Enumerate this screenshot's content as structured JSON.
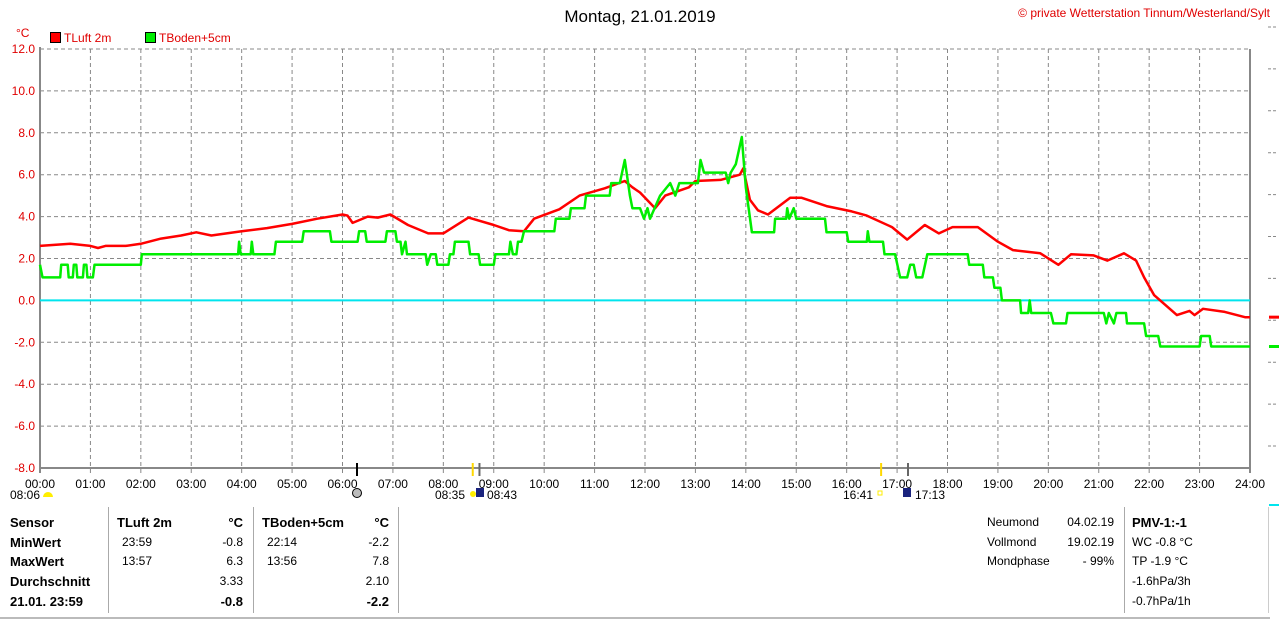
{
  "header": {
    "title": "Montag, 21.01.2019",
    "copyright": "© private Wetterstation Tinnum/Westerland/Sylt"
  },
  "markers": {
    "left_time": "08:06",
    "sunrise": "08:35",
    "sunrise2": "08:43",
    "sunset": "16:41",
    "sunset2": "17:13"
  },
  "table": {
    "col_sensor": "Sensor",
    "row_labels": [
      "MinWert",
      "MaxWert",
      "Durchschnitt",
      "21.01. 23:59"
    ],
    "sensors": [
      {
        "name": "TLuft 2m",
        "unit": "°C",
        "min_time": "23:59",
        "min": "-0.8",
        "max_time": "13:57",
        "max": "6.3",
        "avg": "3.33",
        "current": "-0.8"
      },
      {
        "name": "TBoden+5cm",
        "unit": "°C",
        "min_time": "22:14",
        "min": "-2.2",
        "max_time": "13:56",
        "max": "7.8",
        "avg": "2.10",
        "current": "-2.2"
      }
    ]
  },
  "moon": {
    "rows": [
      {
        "label": "Neumond",
        "value": "04.02.19"
      },
      {
        "label": "Vollmond",
        "value": "19.02.19"
      },
      {
        "label": "Mondphase",
        "value": "- 99%"
      }
    ]
  },
  "extra": {
    "title": "PMV-1:-1",
    "lines": [
      "WC -0.8 °C",
      "TP -1.9 °C",
      "-1.6hPa/3h",
      "-0.7hPa/1h"
    ]
  },
  "chart_data": {
    "type": "line",
    "title": "Montag, 21.01.2019",
    "ylabel": "°C",
    "xlabel": "",
    "ylim": [
      -8,
      12
    ],
    "xlim": [
      0,
      24
    ],
    "grid": true,
    "legend_position": "top-left",
    "y_ticks": [
      "-8.0",
      "-6.0",
      "-4.0",
      "-2.0",
      "0.0",
      "2.0",
      "4.0",
      "6.0",
      "8.0",
      "10.0",
      "12.0"
    ],
    "x_ticks": [
      "00:00",
      "01:00",
      "02:00",
      "03:00",
      "04:00",
      "05:00",
      "06:00",
      "07:00",
      "08:00",
      "09:00",
      "10:00",
      "11:00",
      "12:00",
      "13:00",
      "14:00",
      "15:00",
      "16:00",
      "17:00",
      "18:00",
      "19:00",
      "20:00",
      "21:00",
      "22:00",
      "23:00",
      "24:00"
    ],
    "reference_line": {
      "value": 0,
      "color": "#00e5ee"
    },
    "series": [
      {
        "name": "TLuft 2m",
        "color": "#ff0000",
        "points": [
          [
            0,
            2.6
          ],
          [
            0.6,
            2.7
          ],
          [
            1.0,
            2.6
          ],
          [
            1.15,
            2.5
          ],
          [
            1.3,
            2.6
          ],
          [
            1.7,
            2.6
          ],
          [
            2.0,
            2.7
          ],
          [
            2.4,
            2.95
          ],
          [
            2.8,
            3.1
          ],
          [
            3.1,
            3.25
          ],
          [
            3.4,
            3.1
          ],
          [
            4.0,
            3.3
          ],
          [
            4.5,
            3.45
          ],
          [
            5.0,
            3.65
          ],
          [
            5.5,
            3.9
          ],
          [
            6.0,
            4.1
          ],
          [
            6.1,
            4.05
          ],
          [
            6.2,
            3.7
          ],
          [
            6.5,
            4.0
          ],
          [
            6.7,
            3.95
          ],
          [
            6.95,
            4.1
          ],
          [
            7.3,
            3.6
          ],
          [
            7.7,
            3.2
          ],
          [
            8.0,
            3.2
          ],
          [
            8.2,
            3.5
          ],
          [
            8.5,
            3.95
          ],
          [
            9.0,
            3.6
          ],
          [
            9.3,
            3.35
          ],
          [
            9.6,
            3.3
          ],
          [
            9.8,
            3.9
          ],
          [
            10.3,
            4.35
          ],
          [
            10.7,
            5.0
          ],
          [
            11.2,
            5.35
          ],
          [
            11.6,
            5.7
          ],
          [
            11.75,
            5.4
          ],
          [
            11.9,
            5.15
          ],
          [
            12.2,
            4.4
          ],
          [
            12.4,
            5.0
          ],
          [
            12.87,
            5.4
          ],
          [
            13.0,
            5.7
          ],
          [
            13.5,
            5.75
          ],
          [
            13.88,
            6.0
          ],
          [
            13.95,
            6.3
          ],
          [
            14.08,
            4.8
          ],
          [
            14.24,
            4.3
          ],
          [
            14.44,
            4.1
          ],
          [
            14.88,
            4.9
          ],
          [
            15.1,
            4.9
          ],
          [
            15.6,
            4.5
          ],
          [
            16.1,
            4.25
          ],
          [
            16.4,
            4.05
          ],
          [
            16.9,
            3.5
          ],
          [
            17.2,
            2.9
          ],
          [
            17.55,
            3.6
          ],
          [
            17.83,
            3.2
          ],
          [
            18.1,
            3.5
          ],
          [
            18.6,
            3.5
          ],
          [
            19.0,
            2.8
          ],
          [
            19.3,
            2.4
          ],
          [
            19.84,
            2.25
          ],
          [
            20.2,
            1.7
          ],
          [
            20.45,
            2.2
          ],
          [
            20.9,
            2.15
          ],
          [
            21.17,
            1.9
          ],
          [
            21.5,
            2.25
          ],
          [
            21.74,
            1.9
          ],
          [
            21.9,
            1.1
          ],
          [
            22.1,
            0.25
          ],
          [
            22.55,
            -0.7
          ],
          [
            22.8,
            -0.5
          ],
          [
            22.9,
            -0.7
          ],
          [
            23.07,
            -0.4
          ],
          [
            23.5,
            -0.55
          ],
          [
            23.9,
            -0.8
          ],
          [
            24,
            -0.8
          ]
        ]
      },
      {
        "name": "TBoden+5cm",
        "color": "#00ee00",
        "points": [
          [
            0,
            1.7
          ],
          [
            0.05,
            1.1
          ],
          [
            0.4,
            1.1
          ],
          [
            0.42,
            1.7
          ],
          [
            0.55,
            1.7
          ],
          [
            0.57,
            1.1
          ],
          [
            0.65,
            1.1
          ],
          [
            0.67,
            1.7
          ],
          [
            0.72,
            1.7
          ],
          [
            0.74,
            1.1
          ],
          [
            0.85,
            1.1
          ],
          [
            0.87,
            1.7
          ],
          [
            0.92,
            1.7
          ],
          [
            0.94,
            1.1
          ],
          [
            1.05,
            1.1
          ],
          [
            1.08,
            1.7
          ],
          [
            2.0,
            1.7
          ],
          [
            2.02,
            2.2
          ],
          [
            3.93,
            2.2
          ],
          [
            3.95,
            2.8
          ],
          [
            3.98,
            2.2
          ],
          [
            4.18,
            2.2
          ],
          [
            4.2,
            2.8
          ],
          [
            4.23,
            2.2
          ],
          [
            4.65,
            2.2
          ],
          [
            4.68,
            2.8
          ],
          [
            5.2,
            2.8
          ],
          [
            5.23,
            3.3
          ],
          [
            5.75,
            3.3
          ],
          [
            5.78,
            2.8
          ],
          [
            6.3,
            2.8
          ],
          [
            6.33,
            3.3
          ],
          [
            6.45,
            3.3
          ],
          [
            6.48,
            2.8
          ],
          [
            6.85,
            2.8
          ],
          [
            6.88,
            3.3
          ],
          [
            7.05,
            3.3
          ],
          [
            7.08,
            2.8
          ],
          [
            7.15,
            2.8
          ],
          [
            7.18,
            2.2
          ],
          [
            7.25,
            2.8
          ],
          [
            7.28,
            2.2
          ],
          [
            7.65,
            2.2
          ],
          [
            7.68,
            1.7
          ],
          [
            7.75,
            2.2
          ],
          [
            7.85,
            2.2
          ],
          [
            7.88,
            1.7
          ],
          [
            8.1,
            1.7
          ],
          [
            8.13,
            2.2
          ],
          [
            8.2,
            2.2
          ],
          [
            8.23,
            2.8
          ],
          [
            8.5,
            2.8
          ],
          [
            8.53,
            2.2
          ],
          [
            8.7,
            2.2
          ],
          [
            8.73,
            1.7
          ],
          [
            9.0,
            1.7
          ],
          [
            9.03,
            2.2
          ],
          [
            9.3,
            2.2
          ],
          [
            9.33,
            2.8
          ],
          [
            9.38,
            2.2
          ],
          [
            9.45,
            2.2
          ],
          [
            9.48,
            2.8
          ],
          [
            9.55,
            2.8
          ],
          [
            9.6,
            3.3
          ],
          [
            10.2,
            3.3
          ],
          [
            10.23,
            3.9
          ],
          [
            10.5,
            3.9
          ],
          [
            10.53,
            4.4
          ],
          [
            10.8,
            4.4
          ],
          [
            10.83,
            5.0
          ],
          [
            11.3,
            5.0
          ],
          [
            11.33,
            5.6
          ],
          [
            11.5,
            5.6
          ],
          [
            11.6,
            6.7
          ],
          [
            11.7,
            5.0
          ],
          [
            11.75,
            4.4
          ],
          [
            11.9,
            4.4
          ],
          [
            11.98,
            3.9
          ],
          [
            12.05,
            4.4
          ],
          [
            12.1,
            3.9
          ],
          [
            12.3,
            5.0
          ],
          [
            12.5,
            5.6
          ],
          [
            12.6,
            5.0
          ],
          [
            12.68,
            5.6
          ],
          [
            13.05,
            5.6
          ],
          [
            13.1,
            6.7
          ],
          [
            13.17,
            6.1
          ],
          [
            13.6,
            6.1
          ],
          [
            13.65,
            5.6
          ],
          [
            13.7,
            6.1
          ],
          [
            13.8,
            6.5
          ],
          [
            13.92,
            7.8
          ],
          [
            14.0,
            5.4
          ],
          [
            14.12,
            3.25
          ],
          [
            14.56,
            3.25
          ],
          [
            14.58,
            3.9
          ],
          [
            14.8,
            3.9
          ],
          [
            14.82,
            4.4
          ],
          [
            14.86,
            3.9
          ],
          [
            14.95,
            4.4
          ],
          [
            15.0,
            3.9
          ],
          [
            15.57,
            3.9
          ],
          [
            15.6,
            3.25
          ],
          [
            16.0,
            3.25
          ],
          [
            16.03,
            2.8
          ],
          [
            16.4,
            2.8
          ],
          [
            16.42,
            3.3
          ],
          [
            16.45,
            2.8
          ],
          [
            16.72,
            2.8
          ],
          [
            16.75,
            2.2
          ],
          [
            16.96,
            2.2
          ],
          [
            17.06,
            1.1
          ],
          [
            17.2,
            1.1
          ],
          [
            17.26,
            1.7
          ],
          [
            17.33,
            1.7
          ],
          [
            17.38,
            1.1
          ],
          [
            17.5,
            1.1
          ],
          [
            17.6,
            2.2
          ],
          [
            18.4,
            2.2
          ],
          [
            18.43,
            1.7
          ],
          [
            18.7,
            1.7
          ],
          [
            18.73,
            1.1
          ],
          [
            18.9,
            1.1
          ],
          [
            18.93,
            0.6
          ],
          [
            19.05,
            0.6
          ],
          [
            19.08,
            0
          ],
          [
            19.44,
            0
          ],
          [
            19.46,
            -0.6
          ],
          [
            19.6,
            -0.6
          ],
          [
            19.63,
            0
          ],
          [
            19.66,
            -0.6
          ],
          [
            20.05,
            -0.6
          ],
          [
            20.1,
            -1.1
          ],
          [
            20.35,
            -1.1
          ],
          [
            20.38,
            -0.6
          ],
          [
            21.1,
            -0.6
          ],
          [
            21.15,
            -1.1
          ],
          [
            21.2,
            -0.6
          ],
          [
            21.3,
            -1.1
          ],
          [
            21.35,
            -0.6
          ],
          [
            21.54,
            -0.6
          ],
          [
            21.56,
            -1.1
          ],
          [
            21.9,
            -1.1
          ],
          [
            21.94,
            -1.7
          ],
          [
            22.18,
            -1.7
          ],
          [
            22.22,
            -2.2
          ],
          [
            23.0,
            -2.2
          ],
          [
            23.03,
            -1.7
          ],
          [
            23.2,
            -1.7
          ],
          [
            23.23,
            -2.2
          ],
          [
            24,
            -2.2
          ]
        ]
      }
    ]
  }
}
